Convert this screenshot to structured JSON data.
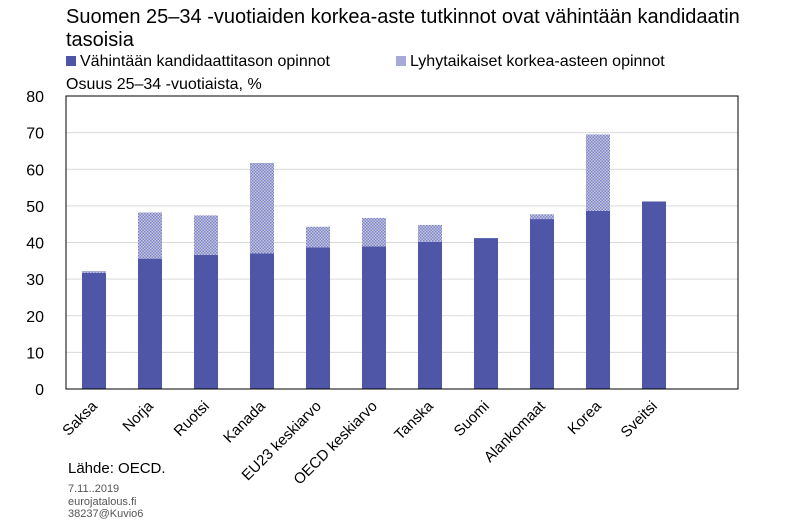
{
  "chart_data": {
    "type": "bar",
    "stacked": true,
    "title": "Suomen 25–34 -vuotiaiden korkea-aste tutkinnot ovat vähintään kandidaatin tasoisia",
    "ylabel": "Osuus 25–34 -vuotiaista, %",
    "xlabel": "",
    "ylim": [
      0,
      80
    ],
    "yticks": [
      0,
      10,
      20,
      30,
      40,
      50,
      60,
      70,
      80
    ],
    "grid": true,
    "legend_position": "top",
    "categories": [
      "Saksa",
      "Norja",
      "Ruotsi",
      "Kanada",
      "EU23 keskiarvo",
      "OECD keskiarvo",
      "Tanska",
      "Suomi",
      "Alankomaat",
      "Korea",
      "Sveitsi"
    ],
    "series": [
      {
        "name": "Vähintään kandidaattitason opinnot",
        "color": "#4f56a8",
        "pattern": "solid",
        "values": [
          31.7,
          35.6,
          36.6,
          37.0,
          38.7,
          38.9,
          40.2,
          41.2,
          46.4,
          48.6,
          51.2
        ]
      },
      {
        "name": "Lyhytaikaiset korkea-asteen opinnot",
        "color": "#a6aad6",
        "pattern": "dotted",
        "values": [
          0.5,
          12.6,
          10.8,
          24.7,
          5.6,
          7.8,
          4.6,
          0,
          1.3,
          20.9,
          0
        ]
      }
    ]
  },
  "footer": {
    "source": "Lähde: OECD.",
    "date": "7.11..2019",
    "site": "eurojatalous.fi",
    "code": "38237@Kuvio6"
  }
}
